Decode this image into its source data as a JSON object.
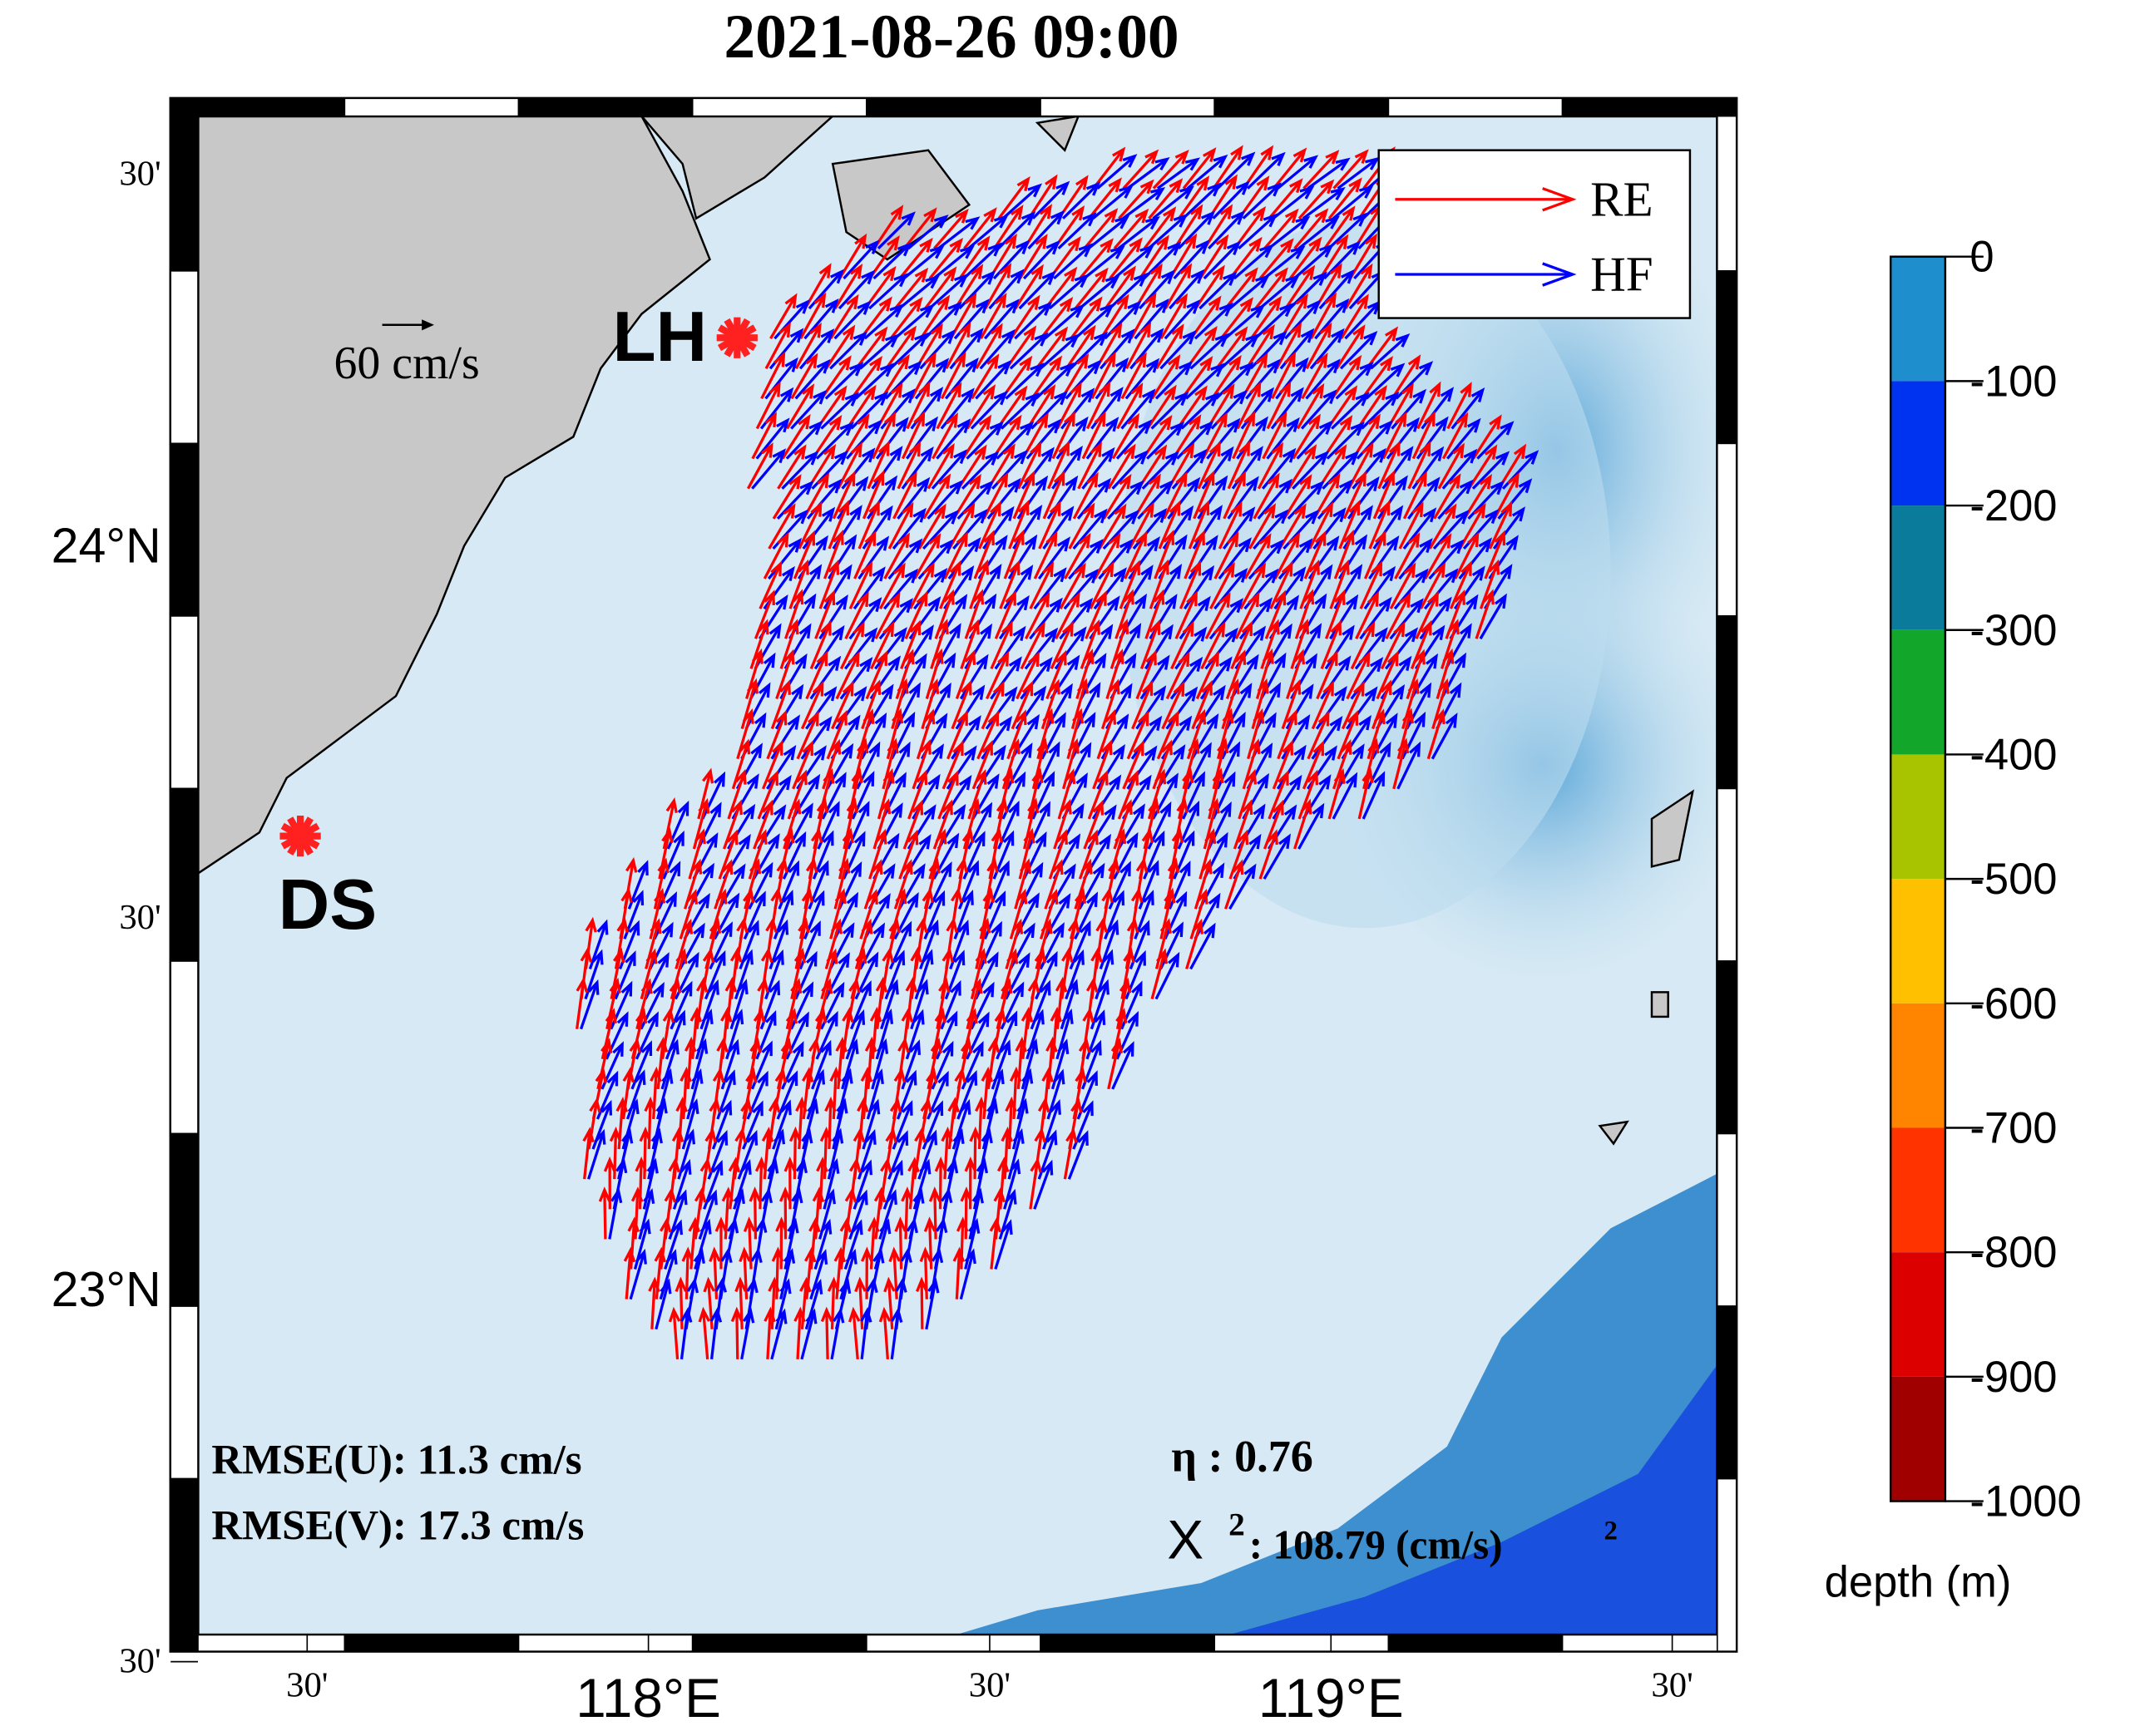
{
  "title": "2021-08-26 09:00",
  "map": {
    "lat_lim": [
      22.536,
      24.578
    ],
    "lon_lim": [
      117.34,
      119.566
    ],
    "lat_ticks": [
      {
        "value": 24.5,
        "label": "30'"
      },
      {
        "value": 24,
        "label": "24°N"
      },
      {
        "value": 23.5,
        "label": "30'"
      },
      {
        "value": 23,
        "label": "23°N"
      },
      {
        "value": 22.5,
        "label": "30'"
      }
    ],
    "lon_ticks": [
      {
        "value": 117.5,
        "label": "30'"
      },
      {
        "value": 118,
        "label": "118°E"
      },
      {
        "value": 118.5,
        "label": "30'"
      },
      {
        "value": 119,
        "label": "119°E"
      },
      {
        "value": 119.5,
        "label": "30'"
      }
    ],
    "stations": [
      {
        "name": "LH",
        "lon": 118.13,
        "lat": 24.28
      },
      {
        "name": "DS",
        "lon": 117.49,
        "lat": 23.61
      }
    ],
    "scale_label": "60 cm/s",
    "legend": [
      {
        "name": "RE",
        "color": "#ff0000"
      },
      {
        "name": "HF",
        "color": "#0000ff"
      }
    ]
  },
  "stats": {
    "rmse_u": "RMSE(U): 11.3 cm/s",
    "rmse_v": "RMSE(V): 17.3 cm/s",
    "eta": "η : 0.76",
    "chi_symbol": "X",
    "chi_sup": "2",
    "chi_value": ": 108.79  (cm/s)",
    "chi_unit_sup": "2"
  },
  "colorbar": {
    "label": "depth (m)",
    "lim": [
      -1000,
      0
    ],
    "ticks": [
      0,
      -100,
      -200,
      -300,
      -400,
      -500,
      -600,
      -700,
      -800,
      -900,
      -1000
    ],
    "colors": [
      "#1e8fcc",
      "#0033f0",
      "#0b7b9c",
      "#12a62a",
      "#a8c400",
      "#ffc000",
      "#ff8400",
      "#ff3300",
      "#dc0000",
      "#a00000"
    ]
  }
}
